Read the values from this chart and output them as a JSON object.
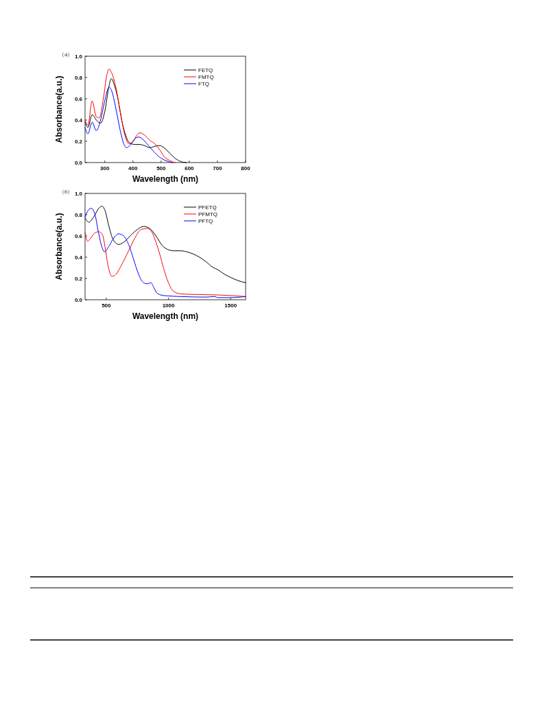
{
  "chart_data": [
    {
      "type": "line",
      "annotations": [
        "（a）"
      ],
      "xlabel": "Wavelength (nm)",
      "ylabel": "Absorbance(a.u.)",
      "xlim": [
        230,
        800
      ],
      "xticks": [
        300,
        400,
        500,
        600,
        700,
        800
      ],
      "ylim": [
        0,
        1
      ],
      "yticks": [
        {
          "value": 0,
          "label": "0.0"
        },
        {
          "value": 0.2,
          "label": "0.2"
        },
        {
          "value": 0.4,
          "label": "0.4"
        },
        {
          "value": 0.6,
          "label": "0.6"
        },
        {
          "value": 0.8,
          "label": "0.8"
        },
        {
          "value": 1,
          "label": "1.0"
        }
      ],
      "legend": "top right",
      "grid": false,
      "series": [
        {
          "name": "FETQ",
          "color": "#000000",
          "x": [
            230,
            240,
            255,
            270,
            285,
            300,
            315,
            323,
            335,
            345,
            360,
            375,
            390,
            410,
            425,
            440,
            460,
            480,
            495,
            510,
            530,
            550,
            570,
            590
          ],
          "values": [
            0.38,
            0.33,
            0.45,
            0.4,
            0.37,
            0.48,
            0.72,
            0.79,
            0.72,
            0.62,
            0.4,
            0.25,
            0.18,
            0.17,
            0.17,
            0.16,
            0.14,
            0.155,
            0.16,
            0.14,
            0.09,
            0.04,
            0.01,
            0.0
          ]
        },
        {
          "name": "FMTQ",
          "color": "#ff0000",
          "x": [
            230,
            240,
            255,
            270,
            280,
            295,
            307,
            315,
            325,
            340,
            355,
            370,
            385,
            400,
            415,
            425,
            440,
            460,
            480,
            495,
            510,
            530,
            550
          ],
          "values": [
            0.4,
            0.35,
            0.58,
            0.43,
            0.42,
            0.6,
            0.82,
            0.88,
            0.84,
            0.7,
            0.48,
            0.27,
            0.18,
            0.2,
            0.26,
            0.28,
            0.26,
            0.21,
            0.17,
            0.12,
            0.06,
            0.02,
            0.0
          ]
        },
        {
          "name": "FTQ",
          "color": "#0000ff",
          "x": [
            230,
            240,
            255,
            270,
            285,
            300,
            315,
            325,
            340,
            355,
            370,
            378,
            395,
            410,
            420,
            435,
            455,
            475,
            495,
            515,
            540
          ],
          "values": [
            0.33,
            0.27,
            0.38,
            0.3,
            0.4,
            0.58,
            0.71,
            0.67,
            0.5,
            0.3,
            0.16,
            0.14,
            0.18,
            0.23,
            0.24,
            0.22,
            0.16,
            0.1,
            0.05,
            0.02,
            0.0
          ]
        }
      ]
    },
    {
      "type": "line",
      "annotations": [
        "（b）"
      ],
      "xlabel": "Wavelength (nm)",
      "ylabel": "Absorbance(a.u.)",
      "xlim": [
        330,
        1620
      ],
      "xticks": [
        500,
        1000,
        1500
      ],
      "ylim": [
        0,
        1
      ],
      "yticks": [
        {
          "value": 0,
          "label": "0.0"
        },
        {
          "value": 0.2,
          "label": "0.2"
        },
        {
          "value": 0.4,
          "label": "0.4"
        },
        {
          "value": 0.6,
          "label": "0.6"
        },
        {
          "value": 0.8,
          "label": "0.8"
        },
        {
          "value": 1,
          "label": "1.0"
        }
      ],
      "legend": "top right",
      "grid": false,
      "series": [
        {
          "name": "PFETQ",
          "color": "#000000",
          "x": [
            330,
            360,
            400,
            440,
            465,
            490,
            520,
            550,
            600,
            650,
            700,
            750,
            800,
            850,
            900,
            950,
            1000,
            1050,
            1100,
            1150,
            1200,
            1250,
            1300,
            1350,
            1400,
            1450,
            1500,
            1560,
            1620
          ],
          "values": [
            0.77,
            0.73,
            0.78,
            0.86,
            0.88,
            0.84,
            0.7,
            0.58,
            0.52,
            0.55,
            0.61,
            0.66,
            0.69,
            0.67,
            0.6,
            0.51,
            0.47,
            0.46,
            0.46,
            0.45,
            0.43,
            0.4,
            0.36,
            0.31,
            0.28,
            0.24,
            0.21,
            0.18,
            0.16
          ]
        },
        {
          "name": "PFMTQ",
          "color": "#ff0000",
          "x": [
            330,
            350,
            370,
            400,
            440,
            470,
            490,
            510,
            530,
            545,
            570,
            620,
            680,
            730,
            780,
            830,
            870,
            900,
            930,
            960,
            1000,
            1040,
            1100,
            1200,
            1400,
            1620
          ],
          "values": [
            0.63,
            0.55,
            0.57,
            0.62,
            0.64,
            0.61,
            0.5,
            0.35,
            0.25,
            0.22,
            0.23,
            0.32,
            0.46,
            0.58,
            0.66,
            0.67,
            0.63,
            0.54,
            0.43,
            0.3,
            0.16,
            0.08,
            0.055,
            0.05,
            0.045,
            0.03
          ]
        },
        {
          "name": "PFTQ",
          "color": "#0000ff",
          "x": [
            330,
            355,
            380,
            410,
            440,
            470,
            485,
            520,
            560,
            600,
            640,
            680,
            720,
            760,
            800,
            830,
            860,
            880,
            910,
            960,
            1100,
            1300,
            1370,
            1400,
            1500,
            1620
          ],
          "values": [
            0.78,
            0.84,
            0.86,
            0.8,
            0.62,
            0.48,
            0.45,
            0.5,
            0.58,
            0.62,
            0.6,
            0.52,
            0.38,
            0.24,
            0.16,
            0.15,
            0.16,
            0.12,
            0.06,
            0.04,
            0.03,
            0.025,
            0.03,
            0.02,
            0.02,
            0.03
          ]
        }
      ]
    }
  ]
}
